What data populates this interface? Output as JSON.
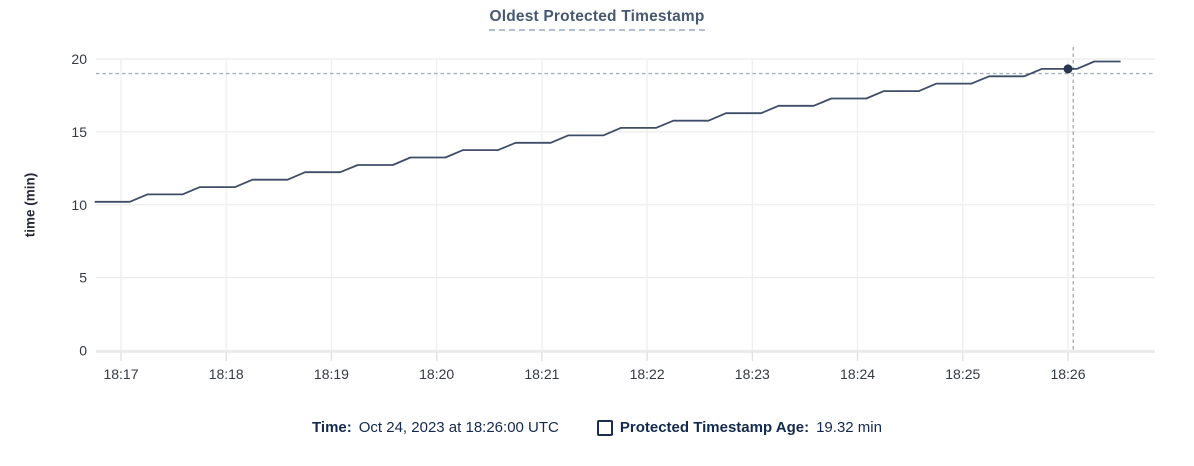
{
  "header": {
    "title": "Oldest Protected Timestamp"
  },
  "chart_data": {
    "type": "line",
    "title": "Oldest Protected Timestamp",
    "xlabel": "",
    "ylabel": "time (min)",
    "ylim": [
      0,
      20
    ],
    "yticks": [
      0,
      5,
      10,
      15,
      20
    ],
    "xticks": [
      "18:17",
      "18:18",
      "18:19",
      "18:20",
      "18:21",
      "18:22",
      "18:23",
      "18:24",
      "18:25",
      "18:26"
    ],
    "x_range": [
      "18:16:45",
      "18:26:50"
    ],
    "grid": true,
    "legend_position": "bottom",
    "series": [
      {
        "name": "Protected Timestamp Age",
        "unit": "min",
        "color": "#3e4d68",
        "points": [
          [
            "18:16:45",
            10.2
          ],
          [
            "18:17:05",
            10.2
          ],
          [
            "18:17:15",
            10.71
          ],
          [
            "18:17:35",
            10.71
          ],
          [
            "18:17:45",
            11.21
          ],
          [
            "18:18:05",
            11.21
          ],
          [
            "18:18:15",
            11.72
          ],
          [
            "18:18:35",
            11.72
          ],
          [
            "18:18:45",
            12.23
          ],
          [
            "18:19:05",
            12.23
          ],
          [
            "18:19:15",
            12.73
          ],
          [
            "18:19:35",
            12.73
          ],
          [
            "18:19:45",
            13.24
          ],
          [
            "18:20:05",
            13.24
          ],
          [
            "18:20:15",
            13.75
          ],
          [
            "18:20:35",
            13.75
          ],
          [
            "18:20:45",
            14.25
          ],
          [
            "18:21:05",
            14.25
          ],
          [
            "18:21:15",
            14.76
          ],
          [
            "18:21:35",
            14.76
          ],
          [
            "18:21:45",
            15.27
          ],
          [
            "18:22:05",
            15.27
          ],
          [
            "18:22:15",
            15.77
          ],
          [
            "18:22:35",
            15.77
          ],
          [
            "18:22:45",
            16.28
          ],
          [
            "18:23:05",
            16.28
          ],
          [
            "18:23:15",
            16.79
          ],
          [
            "18:23:35",
            16.79
          ],
          [
            "18:23:45",
            17.29
          ],
          [
            "18:24:05",
            17.29
          ],
          [
            "18:24:15",
            17.8
          ],
          [
            "18:24:35",
            17.8
          ],
          [
            "18:24:45",
            18.31
          ],
          [
            "18:25:05",
            18.31
          ],
          [
            "18:25:15",
            18.81
          ],
          [
            "18:25:35",
            18.81
          ],
          [
            "18:25:45",
            19.32
          ],
          [
            "18:26:05",
            19.32
          ],
          [
            "18:26:15",
            19.83
          ],
          [
            "18:26:30",
            19.83
          ]
        ]
      }
    ],
    "hover": {
      "time": "18:26:00",
      "value": 19.32,
      "crosshair_time": "18:26:03",
      "crosshair_value": 19.0
    }
  },
  "legend": {
    "time_label": "Time:",
    "time_value": "Oct 24, 2023 at 18:26:00 UTC",
    "series_label": "Protected Timestamp Age:",
    "series_value": "19.32 min"
  },
  "colors": {
    "line": "#3e4d68",
    "dot": "#2a3650",
    "grid_h": "#ececec",
    "grid_v": "#efefef",
    "axis": "#e0e0e0",
    "crosshair": "#a2b1b8",
    "title": "#475872",
    "legend_text": "#14294e",
    "tick_text": "#343a42"
  }
}
